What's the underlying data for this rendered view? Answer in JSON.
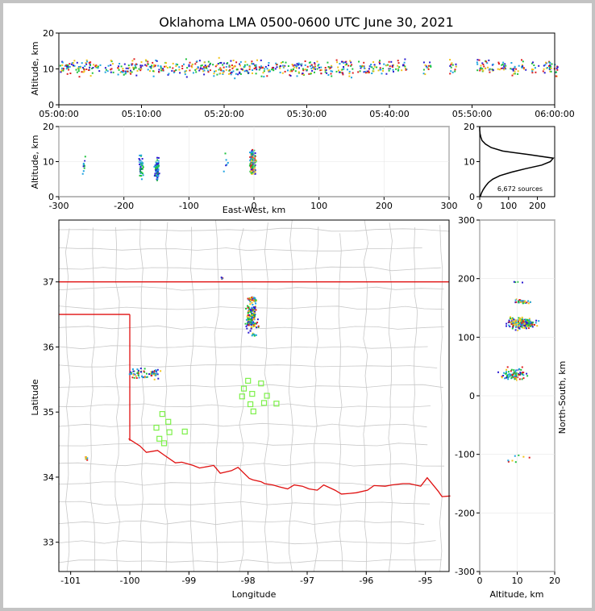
{
  "chart_data": {
    "type": "scatter",
    "title": "Oklahoma LMA 0500-0600 UTC June 30, 2021",
    "colors": {
      "early": "#2b1bd1",
      "mid_early": "#1ea3e0",
      "mid": "#1ec23c",
      "mid_late": "#f0c419",
      "late": "#e02020",
      "state_border": "#e01010",
      "county_lines": "#c8c8c8",
      "stations": "#7df04a",
      "histogram": "#000000"
    },
    "time_height": {
      "ylabel": "Altitude, km",
      "ylim": [
        0,
        20
      ],
      "yticks": [
        "0",
        "10",
        "20"
      ],
      "xticks": [
        "05:00:00",
        "05:10:00",
        "05:20:00",
        "05:30:00",
        "05:40:00",
        "05:50:00",
        "06:00:00"
      ],
      "xlim_minutes": [
        0,
        60
      ],
      "activity_minutes": [
        0.5,
        1.5,
        2.5,
        3.5,
        4.5,
        6,
        7.5,
        8.5,
        9.5,
        10.5,
        11.5,
        12.5,
        13.5,
        14.5,
        15.5,
        16.5,
        17.5,
        18.5,
        19.5,
        20.5,
        21.5,
        22.5,
        23.5,
        24.5,
        25.5,
        26.5,
        27.5,
        28.5,
        29.5,
        30.5,
        31.5,
        32.5,
        34,
        35,
        36.5,
        37.5,
        38.5,
        39.5,
        40.5,
        41.5,
        44.5,
        47.5,
        51,
        52,
        53.5,
        55,
        56,
        57.5,
        59,
        59.8
      ]
    },
    "ew_height": {
      "xlabel": "East-West, km",
      "ylabel": "Altitude, km",
      "xlim": [
        -300,
        300
      ],
      "ylim": [
        0,
        20
      ],
      "xticks": [
        "-300",
        "-200",
        "-100",
        "0",
        "100",
        "200",
        "300"
      ],
      "yticks": [
        "0",
        "10",
        "20"
      ],
      "clusters": [
        {
          "x": -262,
          "alt": 9,
          "count": 10
        },
        {
          "x": -175,
          "alt": 9,
          "count": 40
        },
        {
          "x": -150,
          "alt": 8,
          "count": 70
        },
        {
          "x": -45,
          "alt": 10,
          "count": 6
        },
        {
          "x": -3,
          "alt": 10,
          "count": 260
        }
      ]
    },
    "histogram": {
      "xticks": [
        "0",
        "100",
        "200"
      ],
      "xlim": [
        0,
        260
      ],
      "yticks": [
        "0",
        "10",
        "20"
      ],
      "ylim": [
        0,
        20
      ],
      "sources_label": "6,672 sources",
      "profile": [
        {
          "alt": 0,
          "count": 2
        },
        {
          "alt": 1,
          "count": 6
        },
        {
          "alt": 2,
          "count": 12
        },
        {
          "alt": 3,
          "count": 20
        },
        {
          "alt": 4,
          "count": 30
        },
        {
          "alt": 5,
          "count": 45
        },
        {
          "alt": 6,
          "count": 70
        },
        {
          "alt": 7,
          "count": 110
        },
        {
          "alt": 8,
          "count": 160
        },
        {
          "alt": 9,
          "count": 215
        },
        {
          "alt": 10,
          "count": 245
        },
        {
          "alt": 11,
          "count": 255
        },
        {
          "alt": 12,
          "count": 170
        },
        {
          "alt": 13,
          "count": 80
        },
        {
          "alt": 14,
          "count": 40
        },
        {
          "alt": 15,
          "count": 20
        },
        {
          "alt": 16,
          "count": 8
        },
        {
          "alt": 17,
          "count": 4
        },
        {
          "alt": 18,
          "count": 1
        },
        {
          "alt": 19,
          "count": 0
        },
        {
          "alt": 20,
          "count": 0
        }
      ]
    },
    "map": {
      "xlabel": "Longitude",
      "ylabel": "Latitude",
      "xlim": [
        -101.2,
        -94.6
      ],
      "ylim": [
        32.55,
        37.95
      ],
      "xticks": [
        "-101",
        "-100",
        "-99",
        "-98",
        "-97",
        "-96",
        "-95"
      ],
      "yticks": [
        "33",
        "34",
        "35",
        "36",
        "37"
      ],
      "clusters": [
        {
          "lon": -97.95,
          "lat": 36.45,
          "w": 0.15,
          "h": 0.3,
          "count": 160
        },
        {
          "lon": -97.95,
          "lat": 36.75,
          "w": 0.1,
          "h": 0.06,
          "count": 30
        },
        {
          "lon": -97.9,
          "lat": 36.2,
          "w": 0.05,
          "h": 0.04,
          "count": 6
        },
        {
          "lon": -99.85,
          "lat": 35.6,
          "w": 0.2,
          "h": 0.1,
          "count": 40
        },
        {
          "lon": -99.6,
          "lat": 35.6,
          "w": 0.15,
          "h": 0.12,
          "count": 35
        },
        {
          "lon": -98.45,
          "lat": 37.07,
          "w": 0.02,
          "h": 0.03,
          "count": 4
        },
        {
          "lon": -100.75,
          "lat": 34.3,
          "w": 0.03,
          "h": 0.08,
          "count": 8
        }
      ],
      "stations": [
        {
          "lon": -99.45,
          "lat": 34.97
        },
        {
          "lon": -99.35,
          "lat": 34.85
        },
        {
          "lon": -99.55,
          "lat": 34.76
        },
        {
          "lon": -99.33,
          "lat": 34.69
        },
        {
          "lon": -99.07,
          "lat": 34.7
        },
        {
          "lon": -99.5,
          "lat": 34.59
        },
        {
          "lon": -99.42,
          "lat": 34.52
        },
        {
          "lon": -98,
          "lat": 35.48
        },
        {
          "lon": -97.78,
          "lat": 35.44
        },
        {
          "lon": -98.07,
          "lat": 35.36
        },
        {
          "lon": -97.93,
          "lat": 35.28
        },
        {
          "lon": -98.1,
          "lat": 35.24
        },
        {
          "lon": -97.68,
          "lat": 35.25
        },
        {
          "lon": -97.73,
          "lat": 35.14
        },
        {
          "lon": -97.52,
          "lat": 35.13
        },
        {
          "lon": -97.96,
          "lat": 35.12
        },
        {
          "lon": -97.91,
          "lat": 35.01
        }
      ]
    },
    "ns_height": {
      "xlabel": "Altitude, km",
      "ylabel": "North-South, km",
      "xlim": [
        0,
        20
      ],
      "ylim": [
        -300,
        300
      ],
      "xticks": [
        "0",
        "10",
        "20"
      ],
      "yticks": [
        "-300",
        "-200",
        "-100",
        "0",
        "100",
        "200",
        "300"
      ],
      "clusters": [
        {
          "alt": 11,
          "ns": 125,
          "count": 200
        },
        {
          "alt": 11,
          "ns": 162,
          "count": 30
        },
        {
          "alt": 9,
          "ns": 38,
          "count": 90
        },
        {
          "alt": 10,
          "ns": 197,
          "count": 4
        },
        {
          "alt": 11,
          "ns": -102,
          "count": 4
        },
        {
          "alt": 9,
          "ns": -112,
          "count": 4
        }
      ]
    }
  }
}
